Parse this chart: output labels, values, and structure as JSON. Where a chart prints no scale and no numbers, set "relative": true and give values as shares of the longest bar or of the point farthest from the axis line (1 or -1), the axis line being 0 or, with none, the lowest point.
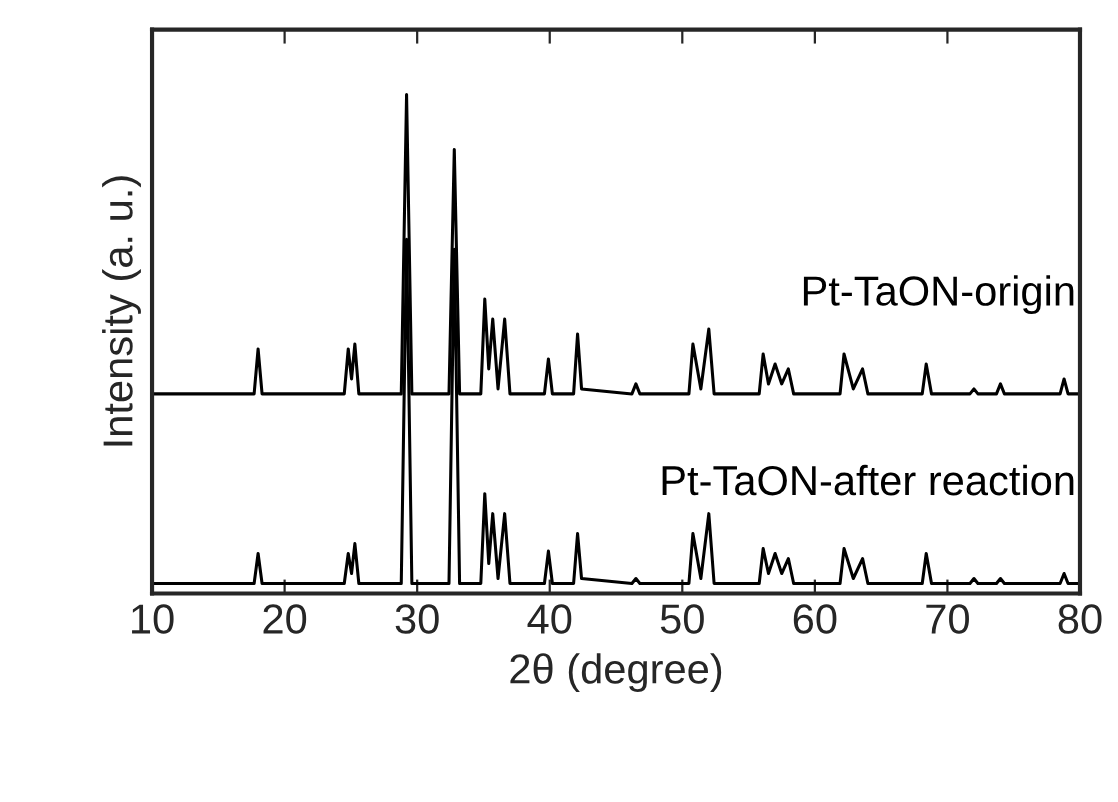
{
  "chart_data": {
    "type": "line",
    "relative": true,
    "xlabel": "2θ (degree)",
    "ylabel": "Intensity (a. u.)",
    "xlim": [
      10,
      80
    ],
    "xticks": [
      10,
      20,
      30,
      40,
      50,
      60,
      70,
      80
    ],
    "grid": false,
    "legend": false,
    "marker": "none",
    "line_style": "solid",
    "tick_labels": "x",
    "x": [
      10,
      17.7,
      18.0,
      18.3,
      24.5,
      24.8,
      25.05,
      25.3,
      25.6,
      28.8,
      29.2,
      29.6,
      32.4,
      32.8,
      33.2,
      34.8,
      35.1,
      35.4,
      35.7,
      36.1,
      36.6,
      37.0,
      39.6,
      39.9,
      40.2,
      41.8,
      42.1,
      42.4,
      46.2,
      46.5,
      46.8,
      50.5,
      50.8,
      51.4,
      52.0,
      52.4,
      55.8,
      56.1,
      56.5,
      57.0,
      57.5,
      58.0,
      58.4,
      61.9,
      62.2,
      62.9,
      63.6,
      64.0,
      68.1,
      68.4,
      68.8,
      71.7,
      72.0,
      72.3,
      73.7,
      74.0,
      74.3,
      78.5,
      78.8,
      79.1,
      80
    ],
    "series": [
      {
        "name": "Pt-TaON-origin",
        "color": "#000000",
        "values": [
          0.4,
          0.4,
          0.49,
          0.4,
          0.4,
          0.49,
          0.43,
          0.5,
          0.4,
          0.4,
          1.0,
          0.4,
          0.4,
          0.89,
          0.4,
          0.4,
          0.59,
          0.45,
          0.55,
          0.41,
          0.55,
          0.4,
          0.4,
          0.47,
          0.4,
          0.4,
          0.52,
          0.41,
          0.4,
          0.42,
          0.4,
          0.4,
          0.5,
          0.41,
          0.53,
          0.4,
          0.4,
          0.48,
          0.42,
          0.46,
          0.42,
          0.45,
          0.4,
          0.4,
          0.48,
          0.41,
          0.45,
          0.4,
          0.4,
          0.46,
          0.4,
          0.4,
          0.41,
          0.4,
          0.4,
          0.42,
          0.4,
          0.4,
          0.43,
          0.4,
          0.4
        ]
      },
      {
        "name": "Pt-TaON-after reaction",
        "color": "#000000",
        "values": [
          0.02,
          0.02,
          0.08,
          0.02,
          0.02,
          0.08,
          0.04,
          0.1,
          0.02,
          0.02,
          0.71,
          0.02,
          0.02,
          0.69,
          0.02,
          0.02,
          0.2,
          0.06,
          0.16,
          0.03,
          0.16,
          0.02,
          0.02,
          0.085,
          0.02,
          0.02,
          0.12,
          0.03,
          0.02,
          0.03,
          0.02,
          0.02,
          0.12,
          0.03,
          0.16,
          0.02,
          0.02,
          0.09,
          0.04,
          0.08,
          0.04,
          0.07,
          0.02,
          0.02,
          0.09,
          0.03,
          0.07,
          0.02,
          0.02,
          0.08,
          0.02,
          0.02,
          0.03,
          0.02,
          0.02,
          0.03,
          0.02,
          0.02,
          0.04,
          0.02,
          0.02
        ]
      }
    ]
  }
}
